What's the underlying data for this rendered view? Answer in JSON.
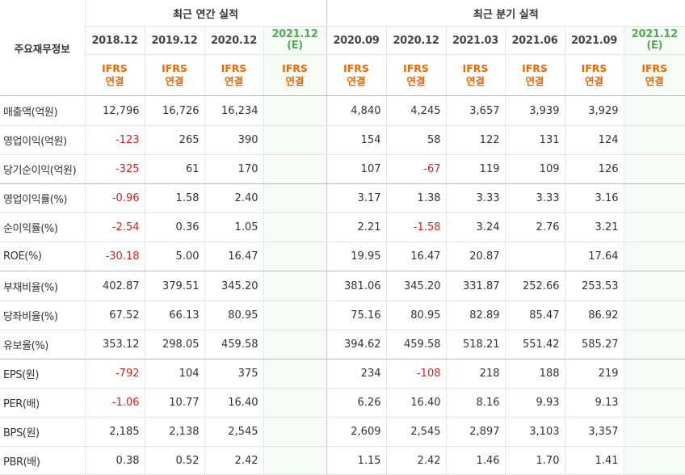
{
  "header": {
    "label": "주요재무정보",
    "annual_group": "최근 연간 실적",
    "quarter_group": "최근 분기 실적",
    "ifrs_top": "IFRS",
    "ifrs_bottom": "연결"
  },
  "columns": [
    {
      "period": "2018.12",
      "est": ""
    },
    {
      "period": "2019.12",
      "est": ""
    },
    {
      "period": "2020.12",
      "est": ""
    },
    {
      "period": "2021.12",
      "est": "(E)"
    },
    {
      "period": "2020.09",
      "est": ""
    },
    {
      "period": "2020.12",
      "est": ""
    },
    {
      "period": "2021.03",
      "est": ""
    },
    {
      "period": "2021.06",
      "est": ""
    },
    {
      "period": "2021.09",
      "est": ""
    },
    {
      "period": "2021.12",
      "est": "(E)"
    }
  ],
  "rows": [
    {
      "label": "매출액(억원)",
      "values": [
        "12,796",
        "16,726",
        "16,234",
        "",
        "4,840",
        "4,245",
        "3,657",
        "3,939",
        "3,929",
        ""
      ]
    },
    {
      "label": "영업이익(억원)",
      "values": [
        "-123",
        "265",
        "390",
        "",
        "154",
        "58",
        "122",
        "131",
        "124",
        ""
      ]
    },
    {
      "label": "당기순이익(억원)",
      "values": [
        "-325",
        "61",
        "170",
        "",
        "107",
        "-67",
        "119",
        "109",
        "126",
        ""
      ]
    },
    {
      "label": "영업이익률(%)",
      "values": [
        "-0.96",
        "1.58",
        "2.40",
        "",
        "3.17",
        "1.38",
        "3.33",
        "3.33",
        "3.16",
        ""
      ]
    },
    {
      "label": "순이익률(%)",
      "values": [
        "-2.54",
        "0.36",
        "1.05",
        "",
        "2.21",
        "-1.58",
        "3.24",
        "2.76",
        "3.21",
        ""
      ]
    },
    {
      "label": "ROE(%)",
      "values": [
        "-30.18",
        "5.00",
        "16.47",
        "",
        "19.95",
        "16.47",
        "20.87",
        "",
        "17.64",
        ""
      ]
    },
    {
      "label": "부채비율(%)",
      "values": [
        "402.87",
        "379.51",
        "345.20",
        "",
        "381.06",
        "345.20",
        "331.87",
        "252.66",
        "253.53",
        ""
      ]
    },
    {
      "label": "당좌비율(%)",
      "values": [
        "67.52",
        "66.13",
        "80.95",
        "",
        "75.16",
        "80.95",
        "82.89",
        "85.47",
        "86.92",
        ""
      ]
    },
    {
      "label": "유보율(%)",
      "values": [
        "353.12",
        "298.05",
        "459.58",
        "",
        "394.62",
        "459.58",
        "518.21",
        "551.42",
        "585.27",
        ""
      ]
    },
    {
      "label": "EPS(원)",
      "values": [
        "-792",
        "104",
        "375",
        "",
        "234",
        "-108",
        "218",
        "188",
        "219",
        ""
      ]
    },
    {
      "label": "PER(배)",
      "values": [
        "-1.06",
        "10.77",
        "16.40",
        "",
        "6.26",
        "16.40",
        "8.16",
        "9.93",
        "9.13",
        ""
      ]
    },
    {
      "label": "BPS(원)",
      "values": [
        "2,185",
        "2,138",
        "2,545",
        "",
        "2,609",
        "2,545",
        "2,897",
        "3,103",
        "3,357",
        ""
      ]
    },
    {
      "label": "PBR(배)",
      "values": [
        "0.38",
        "0.52",
        "2.42",
        "",
        "1.15",
        "2.42",
        "1.46",
        "1.70",
        "1.41",
        ""
      ]
    }
  ],
  "colors": {
    "negative": "#d81f1f",
    "ifrs": "#ee6600",
    "estimate_bg": "#f5fbf5",
    "estimate_text": "#55aa55"
  }
}
